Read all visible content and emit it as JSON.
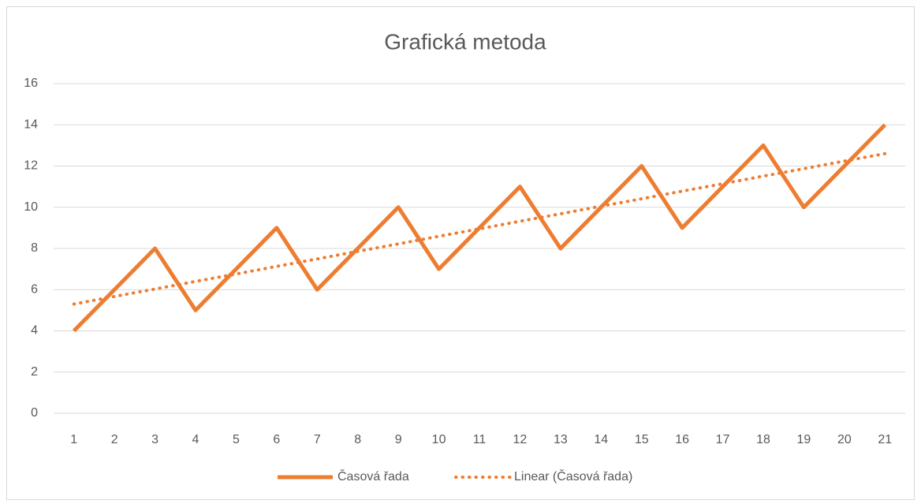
{
  "chart_data": {
    "type": "line",
    "title": "Grafická metoda",
    "categories": [
      "1",
      "2",
      "3",
      "4",
      "5",
      "6",
      "7",
      "8",
      "9",
      "10",
      "11",
      "12",
      "13",
      "14",
      "15",
      "16",
      "17",
      "18",
      "19",
      "20",
      "21"
    ],
    "series": [
      {
        "name": "Časová řada",
        "color": "#ed7d31",
        "style": "solid",
        "values": [
          4,
          6,
          8,
          5,
          7,
          9,
          6,
          8,
          10,
          7,
          9,
          11,
          8,
          10,
          12,
          9,
          11,
          13,
          10,
          12,
          14
        ]
      },
      {
        "name": "Linear (Časová řada)",
        "color": "#ed7d31",
        "style": "dotted",
        "values": [
          5.3,
          5.67,
          6.03,
          6.4,
          6.76,
          7.13,
          7.49,
          7.86,
          8.22,
          8.59,
          8.95,
          9.32,
          9.68,
          10.05,
          10.41,
          10.78,
          11.14,
          11.51,
          11.87,
          12.24,
          12.6
        ]
      }
    ],
    "ylim": [
      0,
      16
    ],
    "yticks": [
      0,
      2,
      4,
      6,
      8,
      10,
      12,
      14,
      16
    ],
    "grid": true,
    "legend": "bottom"
  }
}
